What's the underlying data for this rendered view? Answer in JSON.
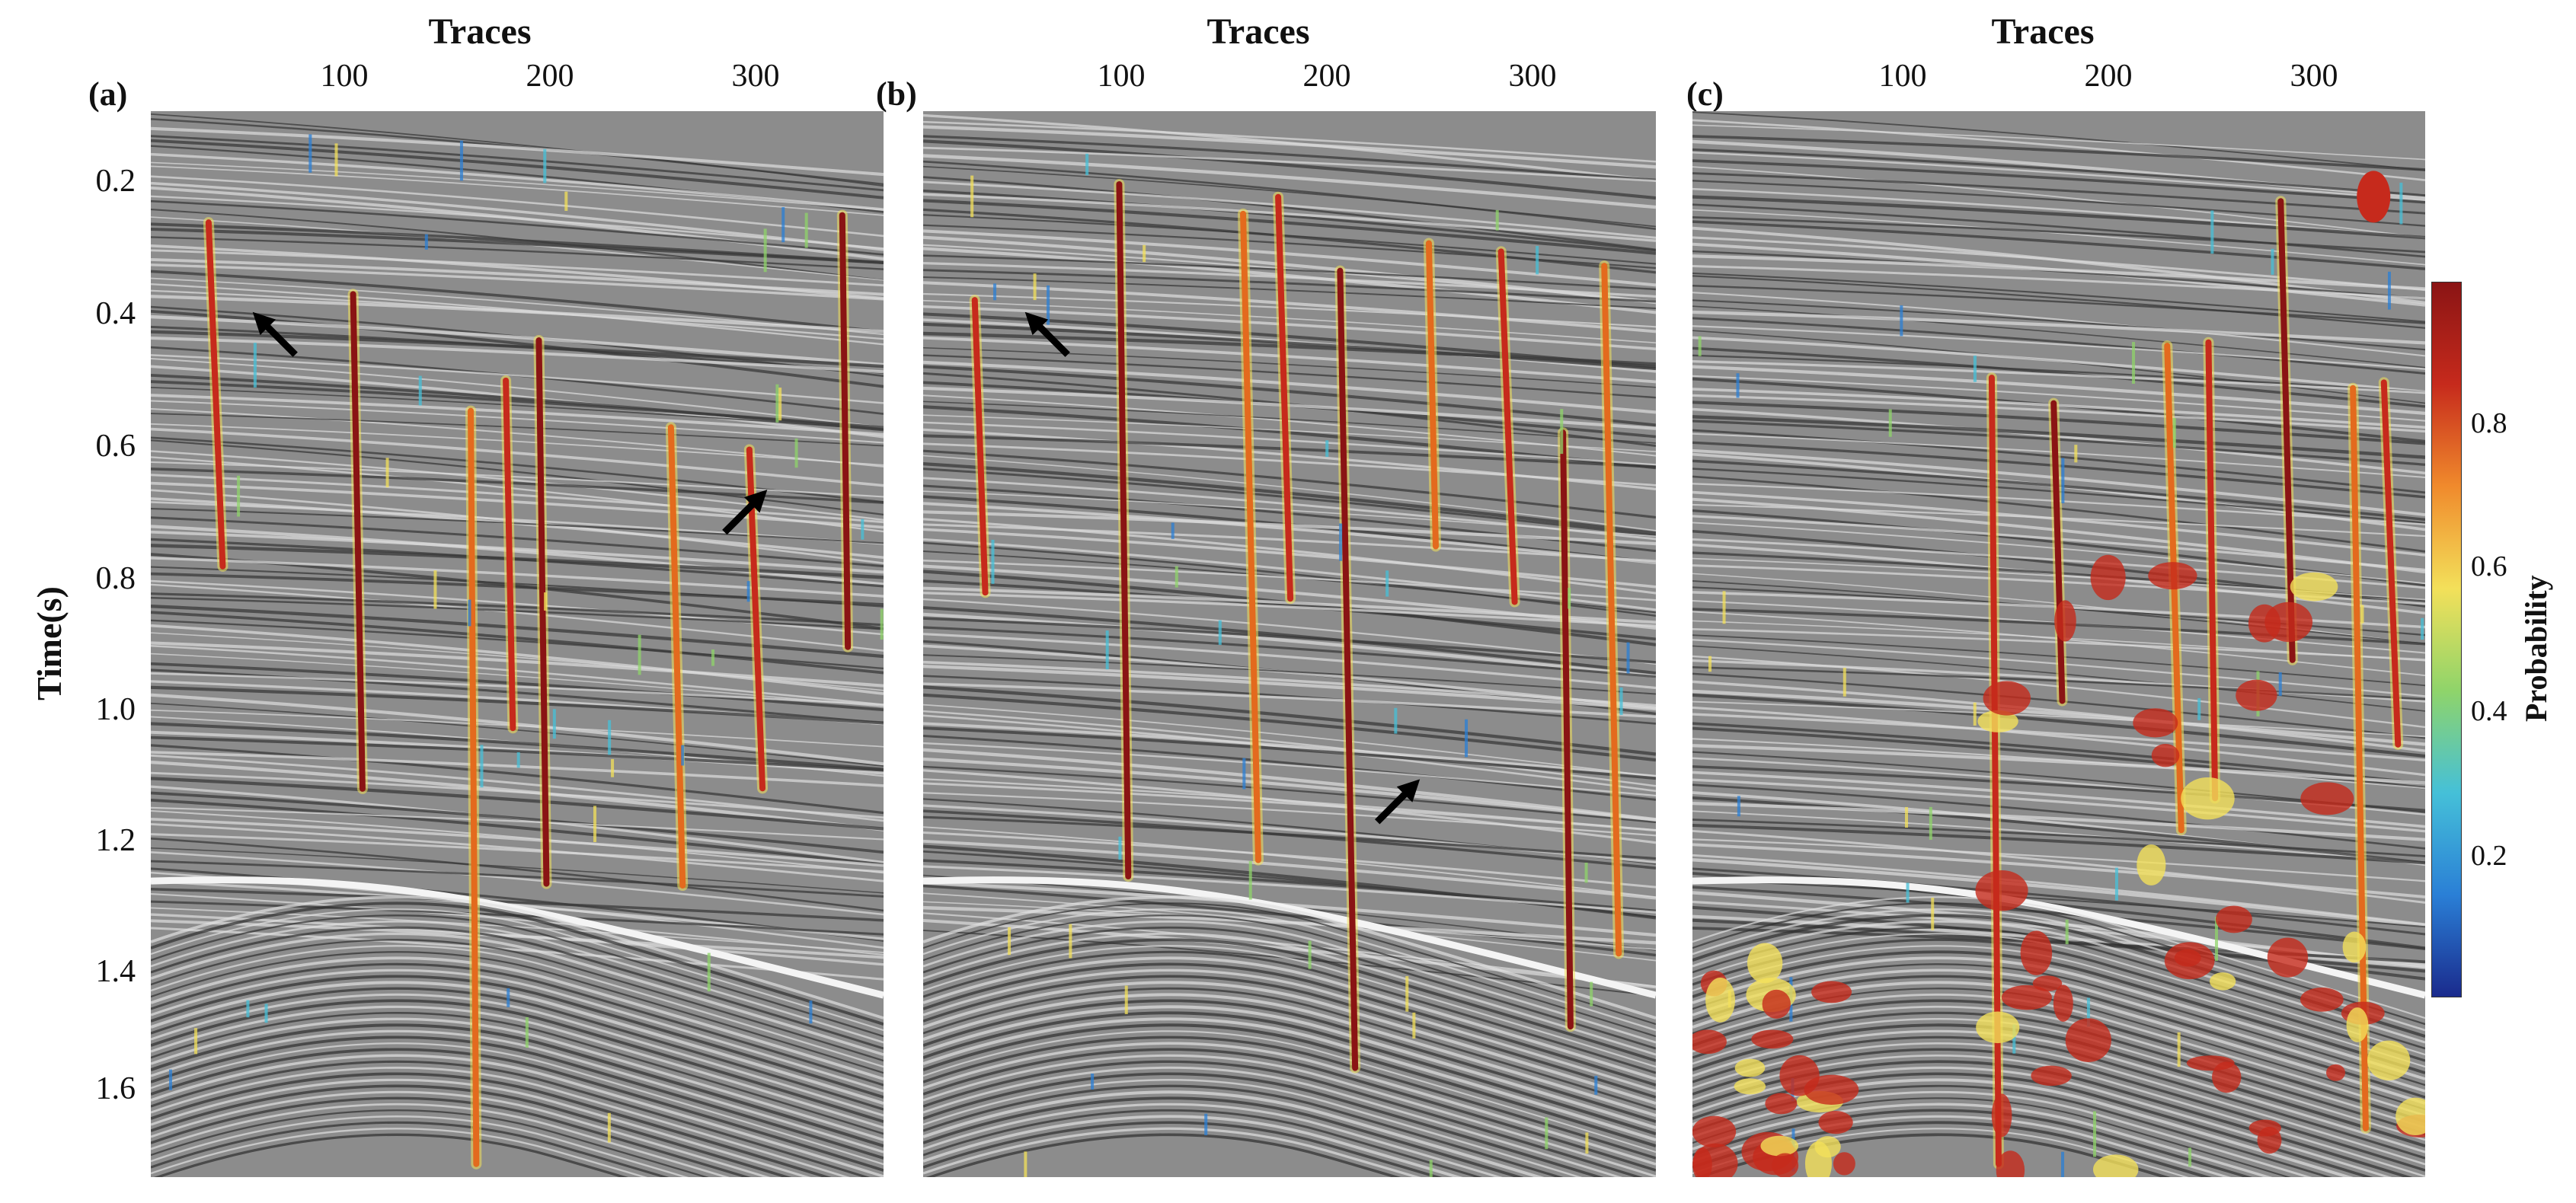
{
  "figure": {
    "y_axis_label": "Time(s)",
    "y_ticks": [
      "0.2",
      "0.4",
      "0.6",
      "0.8",
      "1.0",
      "1.2",
      "1.4",
      "1.6"
    ],
    "x_ticks": [
      "100",
      "200",
      "300"
    ],
    "x_axis_title": "Traces",
    "panels": [
      {
        "label": "(a)",
        "x_title": "Traces",
        "arrows": [
          {
            "trace": 80,
            "time": 0.47,
            "direction": "up-left"
          },
          {
            "trace": 288,
            "time": 0.74,
            "direction": "up-right"
          }
        ]
      },
      {
        "label": "(b)",
        "x_title": "Traces",
        "arrows": [
          {
            "trace": 80,
            "time": 0.47,
            "direction": "up-left"
          },
          {
            "trace": 230,
            "time": 1.18,
            "direction": "up-right"
          }
        ]
      },
      {
        "label": "(c)",
        "x_title": "Traces",
        "arrows": []
      }
    ],
    "colorbar": {
      "label": "Probability",
      "ticks": [
        "0.8",
        "0.6",
        "0.4",
        "0.2"
      ],
      "colors": [
        "#1a2a8c",
        "#2a7fd6",
        "#45c0d8",
        "#8fd46a",
        "#f3e05a",
        "#f08a2c",
        "#c62a1c",
        "#8a1414"
      ]
    }
  },
  "chart_data": {
    "type": "heatmap",
    "title": "",
    "xlabel": "Traces",
    "ylabel": "Time(s)",
    "xlim": [
      10,
      365
    ],
    "ylim": [
      1.72,
      0.1
    ],
    "colorbar": {
      "label": "Probability",
      "range": [
        0,
        1
      ]
    },
    "panels": [
      {
        "name": "(a)",
        "fault_traces": [
          38,
          108,
          165,
          182,
          198,
          262,
          300,
          345
        ]
      },
      {
        "name": "(b)",
        "fault_traces": [
          35,
          105,
          165,
          182,
          212,
          255,
          290,
          320,
          340
        ]
      },
      {
        "name": "(c)",
        "fault_traces": [
          155,
          185,
          240,
          260,
          295,
          330,
          345
        ]
      }
    ]
  }
}
